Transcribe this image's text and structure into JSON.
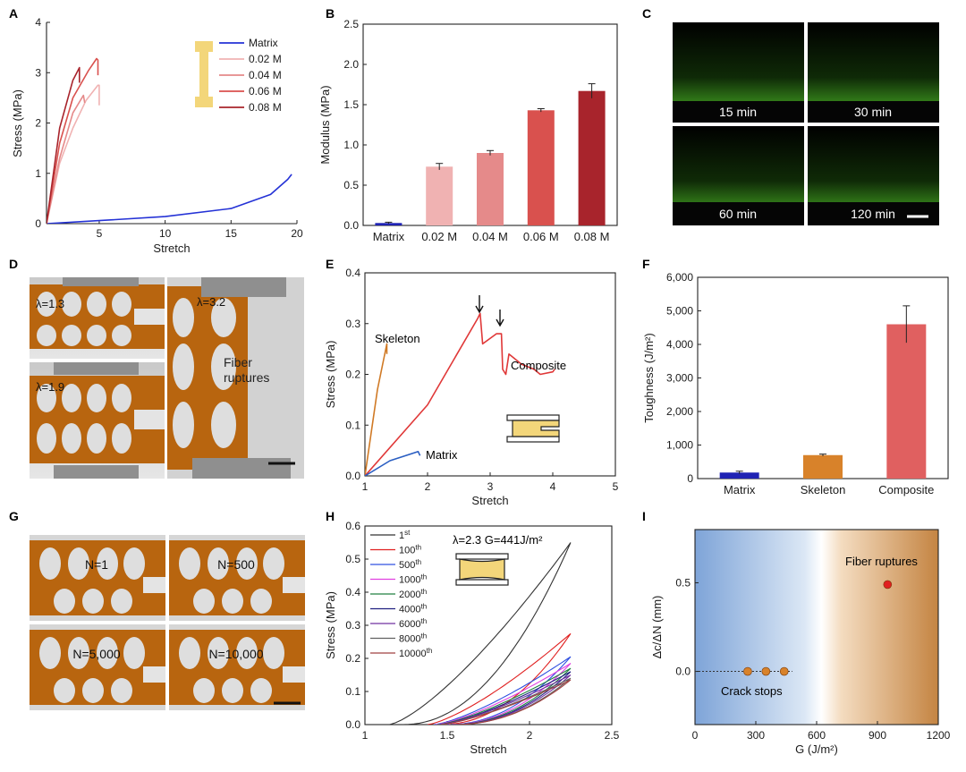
{
  "panel_labels": [
    "A",
    "B",
    "C",
    "D",
    "E",
    "F",
    "G",
    "H",
    "I"
  ],
  "colors": {
    "matrix": "#2432d6",
    "c002": "#f0b2b2",
    "c004": "#e58a8a",
    "c006": "#d9514e",
    "c008": "#a8242c",
    "skeleton": "#d07a26",
    "composite": "#e03838",
    "blue_bar": "#1f23b4",
    "orange_bar": "#d8822a",
    "red_bar": "#e06060",
    "specimen": "#f3d67a",
    "fluor": "#49b22a"
  },
  "panel_c": {
    "times": [
      "15 min",
      "30 min",
      "60 min",
      "120 min"
    ]
  },
  "panel_d": {
    "labels": [
      "λ=1.3",
      "λ=1.9",
      "λ=3.2"
    ],
    "note_lines": [
      "Fiber",
      "ruptures"
    ]
  },
  "panel_g": {
    "labels": [
      "N=1",
      "N=500",
      "N=5,000",
      "N=10,000"
    ]
  },
  "chart_data": [
    {
      "panel": "A",
      "type": "line",
      "xlabel": "Stretch",
      "ylabel": "Stress (MPa)",
      "xlim": [
        1,
        20
      ],
      "ylim": [
        0,
        4
      ],
      "xticks": [
        5,
        10,
        15,
        20
      ],
      "yticks": [
        0,
        1,
        2,
        3,
        4
      ],
      "series": [
        {
          "name": "Matrix",
          "color": "#2432d6",
          "x": [
            1,
            5,
            10,
            15,
            18,
            19.3,
            19.6
          ],
          "y": [
            0,
            0.06,
            0.14,
            0.3,
            0.58,
            0.88,
            0.98
          ]
        },
        {
          "name": "0.02 M",
          "color": "#f0b2b2",
          "x": [
            1,
            2,
            3,
            4,
            4.9,
            5,
            5
          ],
          "y": [
            0,
            1.2,
            1.9,
            2.45,
            2.75,
            2.75,
            2.35
          ]
        },
        {
          "name": "0.04 M",
          "color": "#e58a8a",
          "x": [
            1,
            2,
            3,
            3.8,
            3.9
          ],
          "y": [
            0,
            1.3,
            2.2,
            2.55,
            2.4
          ]
        },
        {
          "name": "0.06 M",
          "color": "#d9514e",
          "x": [
            1,
            2,
            3,
            4.2,
            4.8,
            4.9,
            4.9
          ],
          "y": [
            0,
            1.6,
            2.5,
            3.05,
            3.28,
            3.25,
            2.95
          ]
        },
        {
          "name": "0.08 M",
          "color": "#a8242c",
          "x": [
            1,
            2,
            3,
            3.5,
            3.5
          ],
          "y": [
            0,
            1.9,
            2.85,
            3.1,
            2.8
          ]
        }
      ]
    },
    {
      "panel": "B",
      "type": "bar",
      "xlabel": "",
      "ylabel": "Modulus (MPa)",
      "ylim": [
        0,
        2.5
      ],
      "yticks": [
        0,
        0.5,
        1.0,
        1.5,
        2.0,
        2.5
      ],
      "ytick_labels": [
        "0.0",
        "0.5",
        "1.0",
        "1.5",
        "2.0",
        "2.5"
      ],
      "categories": [
        "Matrix",
        "0.02 M",
        "0.04 M",
        "0.06 M",
        "0.08 M"
      ],
      "values": [
        0.03,
        0.73,
        0.9,
        1.43,
        1.67
      ],
      "errors": [
        0.01,
        0.04,
        0.03,
        0.02,
        0.09
      ],
      "colors": [
        "#1f23b4",
        "#f0b2b2",
        "#e58a8a",
        "#d9514e",
        "#a8242c"
      ]
    },
    {
      "panel": "E",
      "type": "line",
      "xlabel": "Stretch",
      "ylabel": "Stress (MPa)",
      "xlim": [
        1,
        5
      ],
      "ylim": [
        0,
        0.4
      ],
      "xticks": [
        1,
        2,
        3,
        4,
        5
      ],
      "yticks": [
        0,
        0.1,
        0.2,
        0.3,
        0.4
      ],
      "ytick_labels": [
        "0.0",
        "0.1",
        "0.2",
        "0.3",
        "0.4"
      ],
      "series": [
        {
          "name": "Skeleton",
          "color": "#d07a26",
          "x": [
            1,
            1.2,
            1.35,
            1.35
          ],
          "y": [
            0,
            0.17,
            0.26,
            0.24
          ]
        },
        {
          "name": "Composite",
          "color": "#e03838",
          "x": [
            1,
            2,
            2.8,
            2.84,
            2.88,
            3.1,
            3.18,
            3.2,
            3.25,
            3.3,
            3.5,
            3.7,
            3.8,
            4.0,
            4.03
          ],
          "y": [
            0,
            0.14,
            0.31,
            0.32,
            0.26,
            0.28,
            0.28,
            0.21,
            0.2,
            0.24,
            0.22,
            0.21,
            0.2,
            0.205,
            0.21
          ]
        },
        {
          "name": "Matrix",
          "color": "#2a5ec2",
          "x": [
            1,
            1.4,
            1.85,
            1.88
          ],
          "y": [
            0,
            0.03,
            0.048,
            0.04
          ]
        }
      ],
      "annotations": [
        "Skeleton",
        "Composite",
        "Matrix"
      ]
    },
    {
      "panel": "F",
      "type": "bar",
      "xlabel": "",
      "ylabel": "Toughness (J/m²)",
      "ylim": [
        0,
        6000
      ],
      "yticks": [
        0,
        1000,
        2000,
        3000,
        4000,
        5000,
        6000
      ],
      "ytick_labels": [
        "0",
        "1,000",
        "2,000",
        "3,000",
        "4,000",
        "5,000",
        "6,000"
      ],
      "categories": [
        "Matrix",
        "Skeleton",
        "Composite"
      ],
      "values": [
        180,
        700,
        4600
      ],
      "errors": [
        40,
        30,
        550
      ],
      "colors": [
        "#1f23b4",
        "#d8822a",
        "#e06060"
      ]
    },
    {
      "panel": "H",
      "type": "line",
      "title": "λ=2.3  G=441J/m²",
      "xlabel": "Stretch",
      "ylabel": "Stress (MPa)",
      "xlim": [
        1.0,
        2.5
      ],
      "ylim": [
        0,
        0.6
      ],
      "xticks": [
        1.0,
        1.5,
        2.0,
        2.5
      ],
      "yticks": [
        0,
        0.1,
        0.2,
        0.3,
        0.4,
        0.5,
        0.6
      ],
      "ytick_labels": [
        "0.0",
        "0.1",
        "0.2",
        "0.3",
        "0.4",
        "0.5",
        "0.6"
      ],
      "series": [
        {
          "name": "1st",
          "color": "#333333",
          "max": 0.55,
          "start": 1.15
        },
        {
          "name": "100th",
          "color": "#e02020",
          "max": 0.275,
          "start": 1.38
        },
        {
          "name": "500th",
          "color": "#3050e0",
          "max": 0.205,
          "start": 1.42
        },
        {
          "name": "1000th",
          "color": "#e040e0",
          "max": 0.185,
          "start": 1.43
        },
        {
          "name": "2000th",
          "color": "#208040",
          "max": 0.17,
          "start": 1.44
        },
        {
          "name": "4000th",
          "color": "#202080",
          "max": 0.16,
          "start": 1.45
        },
        {
          "name": "6000th",
          "color": "#7030a0",
          "max": 0.15,
          "start": 1.45
        },
        {
          "name": "8000th",
          "color": "#606060",
          "max": 0.14,
          "start": 1.46
        },
        {
          "name": "10000th",
          "color": "#a04040",
          "max": 0.135,
          "start": 1.46
        }
      ],
      "legend_labels": [
        [
          "1",
          "st"
        ],
        [
          "100",
          "th"
        ],
        [
          "500",
          "th"
        ],
        [
          "1000",
          "th"
        ],
        [
          "2000",
          "th"
        ],
        [
          "4000",
          "th"
        ],
        [
          "6000",
          "th"
        ],
        [
          "8000",
          "th"
        ],
        [
          "10000",
          "th"
        ]
      ]
    },
    {
      "panel": "I",
      "type": "scatter",
      "xlabel": "G (J/m²)",
      "ylabel": "Δc/ΔN (mm)",
      "xlim": [
        0,
        1200
      ],
      "ylim": [
        -0.3,
        0.8
      ],
      "xticks": [
        0,
        300,
        600,
        900,
        1200
      ],
      "yticks": [
        0.0,
        0.5
      ],
      "ytick_labels": [
        "0.0",
        "0.5"
      ],
      "points": [
        {
          "x": 260,
          "y": 0,
          "color": "#d8822a"
        },
        {
          "x": 350,
          "y": 0,
          "color": "#d8822a"
        },
        {
          "x": 440,
          "y": 0,
          "color": "#d8822a"
        },
        {
          "x": 950,
          "y": 0.49,
          "color": "#e02020"
        }
      ],
      "annotations": [
        "Fiber ruptures",
        "Crack stops"
      ]
    }
  ]
}
